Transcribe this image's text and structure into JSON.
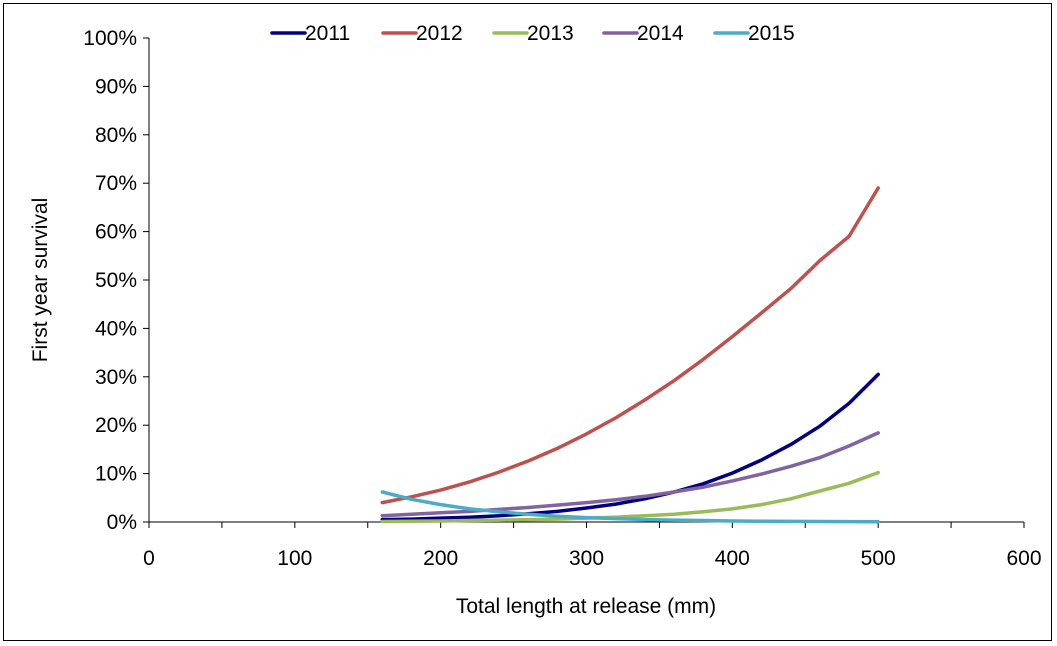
{
  "chart_data": {
    "type": "line",
    "title": "",
    "xlabel": "Total length at release (mm)",
    "ylabel": "First year survival",
    "xlim": [
      0,
      600
    ],
    "ylim": [
      0,
      1
    ],
    "x_ticks": [
      0,
      100,
      200,
      300,
      400,
      500,
      600
    ],
    "x_tick_labels": [
      "0",
      "100",
      "200",
      "300",
      "400",
      "500",
      "600"
    ],
    "y_ticks": [
      0,
      0.1,
      0.2,
      0.3,
      0.4,
      0.5,
      0.6,
      0.7,
      0.8,
      0.9,
      1.0
    ],
    "y_tick_labels": [
      "0%",
      "10%",
      "20%",
      "30%",
      "40%",
      "50%",
      "60%",
      "70%",
      "80%",
      "90%",
      "100%"
    ],
    "grid": false,
    "legend_position": "top",
    "x": [
      160,
      180,
      200,
      220,
      240,
      260,
      280,
      300,
      320,
      340,
      360,
      380,
      400,
      420,
      440,
      460,
      480,
      500
    ],
    "series": [
      {
        "name": "2011",
        "color": "#000080",
        "values": [
          0.005,
          0.006,
          0.008,
          0.01,
          0.013,
          0.017,
          0.022,
          0.029,
          0.037,
          0.048,
          0.062,
          0.079,
          0.101,
          0.128,
          0.16,
          0.198,
          0.245,
          0.305
        ]
      },
      {
        "name": "2012",
        "color": "#C0504D",
        "values": [
          0.04,
          0.052,
          0.066,
          0.083,
          0.103,
          0.126,
          0.152,
          0.182,
          0.215,
          0.252,
          0.292,
          0.336,
          0.383,
          0.432,
          0.482,
          0.54,
          0.59,
          0.69
        ]
      },
      {
        "name": "2013",
        "color": "#9BBB59",
        "values": [
          0.001,
          0.0015,
          0.002,
          0.003,
          0.004,
          0.005,
          0.006,
          0.008,
          0.01,
          0.013,
          0.016,
          0.021,
          0.027,
          0.036,
          0.048,
          0.064,
          0.08,
          0.102
        ]
      },
      {
        "name": "2014",
        "color": "#8064A2",
        "values": [
          0.013,
          0.016,
          0.019,
          0.022,
          0.026,
          0.03,
          0.035,
          0.04,
          0.046,
          0.053,
          0.062,
          0.072,
          0.085,
          0.099,
          0.115,
          0.133,
          0.157,
          0.184
        ]
      },
      {
        "name": "2015",
        "color": "#4BACC6",
        "values": [
          0.062,
          0.047,
          0.036,
          0.027,
          0.021,
          0.016,
          0.012,
          0.009,
          0.007,
          0.005,
          0.004,
          0.003,
          0.002,
          0.0017,
          0.0013,
          0.001,
          0.0008,
          0.0006
        ]
      }
    ]
  }
}
